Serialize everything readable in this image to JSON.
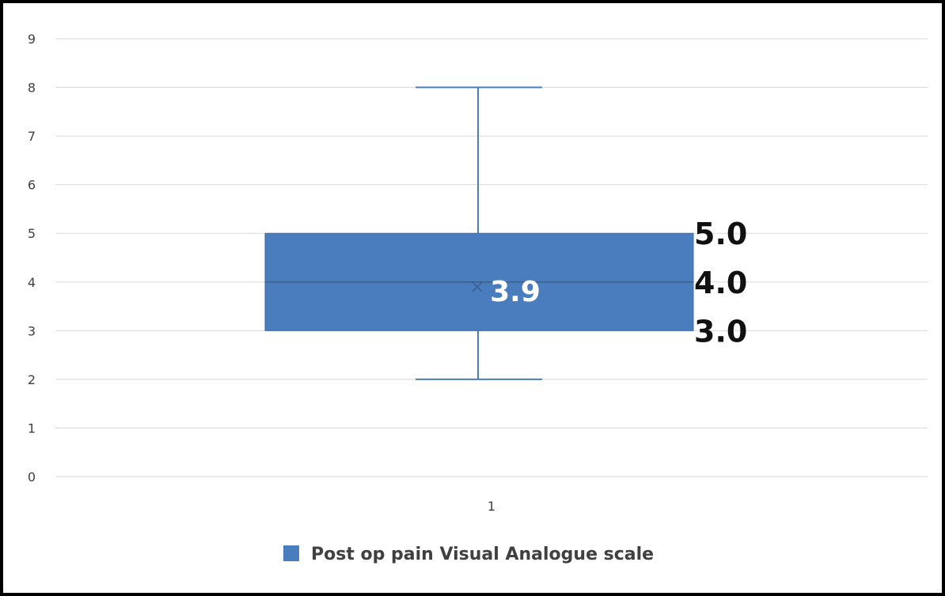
{
  "chart_data": {
    "type": "box",
    "categories": [
      "1"
    ],
    "y_ticks": [
      "0",
      "1",
      "2",
      "3",
      "4",
      "5",
      "6",
      "7",
      "8",
      "9"
    ],
    "ylim": [
      0,
      9
    ],
    "grid": true,
    "legend_position": "bottom",
    "series": [
      {
        "name": "Post op pain Visual Analogue scale",
        "color": "#4a7dbd",
        "min": 2,
        "q1": 3,
        "median": 4,
        "q3": 5,
        "max": 8,
        "mean": 3.9
      }
    ],
    "data_labels": {
      "q3": "5.0",
      "median": "4.0",
      "q1": "3.0",
      "mean": "3.9"
    }
  }
}
